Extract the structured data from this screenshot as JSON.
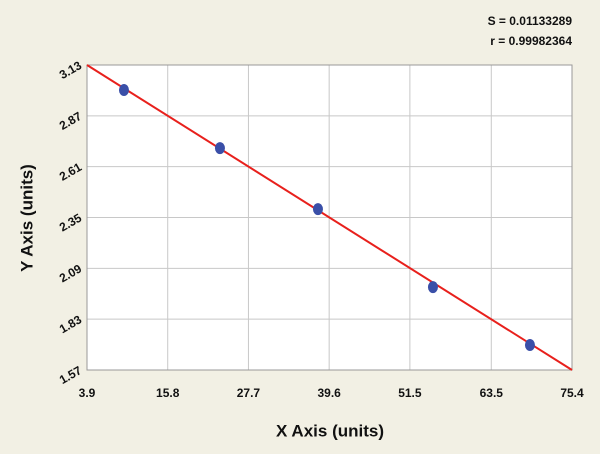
{
  "chart_data": {
    "type": "scatter",
    "annotations": [
      "S = 0.01133289",
      "r = 0.99982364"
    ],
    "x_label": "X Axis (units)",
    "y_label": "Y Axis (units)",
    "x": [
      9.35,
      23.5,
      37.95,
      54.9,
      69.2
    ],
    "series": [
      {
        "color": "#3a4fa8",
        "values": [
          3.002,
          2.705,
          2.393,
          1.994,
          1.698
        ]
      }
    ],
    "fit_line": {
      "color": "#e8201c",
      "x": [
        3.9,
        75.4
      ],
      "y": [
        3.13,
        1.57
      ]
    },
    "xlim": [
      3.9,
      75.4
    ],
    "xticks": [
      3.9,
      15.8,
      27.7,
      39.6,
      51.5,
      63.5,
      75.4
    ],
    "ylim": [
      1.57,
      3.13
    ],
    "yticks": [
      1.57,
      1.83,
      2.09,
      2.35,
      2.61,
      2.87,
      3.13
    ],
    "grid": true
  }
}
